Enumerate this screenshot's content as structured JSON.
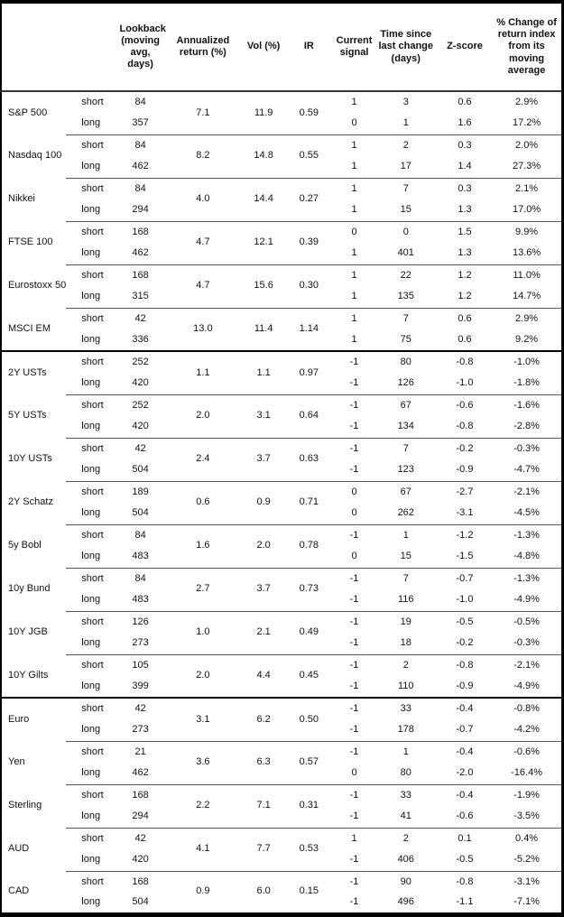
{
  "table": {
    "columns": {
      "lookback": "Lookback (moving avg, days)",
      "annualized": "Annualized return (%)",
      "vol": "Vol (%)",
      "ir": "IR",
      "signal": "Current signal",
      "time": "Time since last change (days)",
      "zscore": "Z-score",
      "pct_change": "% Change of return index from its moving average"
    },
    "row_labels": {
      "short": "short",
      "long": "long"
    },
    "sections": [
      {
        "assets": [
          {
            "name": "S&P 500",
            "annualized": "7.1",
            "vol": "11.9",
            "ir": "0.59",
            "short": {
              "lookback": "84",
              "signal": "1",
              "time": "3",
              "zscore": "0.6",
              "pct": "2.9%"
            },
            "long": {
              "lookback": "357",
              "signal": "0",
              "time": "1",
              "zscore": "1.6",
              "pct": "17.2%"
            }
          },
          {
            "name": "Nasdaq 100",
            "annualized": "8.2",
            "vol": "14.8",
            "ir": "0.55",
            "short": {
              "lookback": "84",
              "signal": "1",
              "time": "2",
              "zscore": "0.3",
              "pct": "2.0%"
            },
            "long": {
              "lookback": "462",
              "signal": "1",
              "time": "17",
              "zscore": "1.4",
              "pct": "27.3%"
            }
          },
          {
            "name": "Nikkei",
            "annualized": "4.0",
            "vol": "14.4",
            "ir": "0.27",
            "short": {
              "lookback": "84",
              "signal": "1",
              "time": "7",
              "zscore": "0.3",
              "pct": "2.1%"
            },
            "long": {
              "lookback": "294",
              "signal": "1",
              "time": "15",
              "zscore": "1.3",
              "pct": "17.0%"
            }
          },
          {
            "name": "FTSE 100",
            "annualized": "4.7",
            "vol": "12.1",
            "ir": "0.39",
            "short": {
              "lookback": "168",
              "signal": "0",
              "time": "0",
              "zscore": "1.5",
              "pct": "9.9%"
            },
            "long": {
              "lookback": "462",
              "signal": "1",
              "time": "401",
              "zscore": "1.3",
              "pct": "13.6%"
            }
          },
          {
            "name": "Eurostoxx 50",
            "annualized": "4.7",
            "vol": "15.6",
            "ir": "0.30",
            "short": {
              "lookback": "168",
              "signal": "1",
              "time": "22",
              "zscore": "1.2",
              "pct": "11.0%"
            },
            "long": {
              "lookback": "315",
              "signal": "1",
              "time": "135",
              "zscore": "1.2",
              "pct": "14.7%"
            }
          },
          {
            "name": "MSCI EM",
            "annualized": "13.0",
            "vol": "11.4",
            "ir": "1.14",
            "short": {
              "lookback": "42",
              "signal": "1",
              "time": "7",
              "zscore": "0.6",
              "pct": "2.9%"
            },
            "long": {
              "lookback": "336",
              "signal": "1",
              "time": "75",
              "zscore": "0.6",
              "pct": "9.2%"
            }
          }
        ]
      },
      {
        "assets": [
          {
            "name": "2Y USTs",
            "annualized": "1.1",
            "vol": "1.1",
            "ir": "0.97",
            "short": {
              "lookback": "252",
              "signal": "-1",
              "time": "80",
              "zscore": "-0.8",
              "pct": "-1.0%"
            },
            "long": {
              "lookback": "420",
              "signal": "-1",
              "time": "126",
              "zscore": "-1.0",
              "pct": "-1.8%"
            }
          },
          {
            "name": "5Y USTs",
            "annualized": "2.0",
            "vol": "3.1",
            "ir": "0.64",
            "short": {
              "lookback": "252",
              "signal": "-1",
              "time": "67",
              "zscore": "-0.6",
              "pct": "-1.6%"
            },
            "long": {
              "lookback": "420",
              "signal": "-1",
              "time": "134",
              "zscore": "-0.8",
              "pct": "-2.8%"
            }
          },
          {
            "name": "10Y USTs",
            "annualized": "2.4",
            "vol": "3.7",
            "ir": "0.63",
            "short": {
              "lookback": "42",
              "signal": "-1",
              "time": "7",
              "zscore": "-0.2",
              "pct": "-0.3%"
            },
            "long": {
              "lookback": "504",
              "signal": "-1",
              "time": "123",
              "zscore": "-0.9",
              "pct": "-4.7%"
            }
          },
          {
            "name": "2Y Schatz",
            "annualized": "0.6",
            "vol": "0.9",
            "ir": "0.71",
            "short": {
              "lookback": "189",
              "signal": "0",
              "time": "67",
              "zscore": "-2.7",
              "pct": "-2.1%"
            },
            "long": {
              "lookback": "504",
              "signal": "0",
              "time": "262",
              "zscore": "-3.1",
              "pct": "-4.5%"
            }
          },
          {
            "name": "5y Bobl",
            "annualized": "1.6",
            "vol": "2.0",
            "ir": "0.78",
            "short": {
              "lookback": "84",
              "signal": "-1",
              "time": "1",
              "zscore": "-1.2",
              "pct": "-1.3%"
            },
            "long": {
              "lookback": "483",
              "signal": "0",
              "time": "15",
              "zscore": "-1.5",
              "pct": "-4.8%"
            }
          },
          {
            "name": "10y Bund",
            "annualized": "2.7",
            "vol": "3.7",
            "ir": "0.73",
            "short": {
              "lookback": "84",
              "signal": "-1",
              "time": "7",
              "zscore": "-0.7",
              "pct": "-1.3%"
            },
            "long": {
              "lookback": "483",
              "signal": "-1",
              "time": "116",
              "zscore": "-1.0",
              "pct": "-4.9%"
            }
          },
          {
            "name": "10Y JGB",
            "annualized": "1.0",
            "vol": "2.1",
            "ir": "0.49",
            "short": {
              "lookback": "126",
              "signal": "-1",
              "time": "19",
              "zscore": "-0.5",
              "pct": "-0.5%"
            },
            "long": {
              "lookback": "273",
              "signal": "-1",
              "time": "18",
              "zscore": "-0.2",
              "pct": "-0.3%"
            }
          },
          {
            "name": "10Y Gilts",
            "annualized": "2.0",
            "vol": "4.4",
            "ir": "0.45",
            "short": {
              "lookback": "105",
              "signal": "-1",
              "time": "2",
              "zscore": "-0.8",
              "pct": "-2.1%"
            },
            "long": {
              "lookback": "399",
              "signal": "-1",
              "time": "110",
              "zscore": "-0.9",
              "pct": "-4.9%"
            }
          }
        ]
      },
      {
        "assets": [
          {
            "name": "Euro",
            "annualized": "3.1",
            "vol": "6.2",
            "ir": "0.50",
            "short": {
              "lookback": "42",
              "signal": "-1",
              "time": "33",
              "zscore": "-0.4",
              "pct": "-0.8%"
            },
            "long": {
              "lookback": "273",
              "signal": "-1",
              "time": "178",
              "zscore": "-0.7",
              "pct": "-4.2%"
            }
          },
          {
            "name": "Yen",
            "annualized": "3.6",
            "vol": "6.3",
            "ir": "0.57",
            "short": {
              "lookback": "21",
              "signal": "-1",
              "time": "1",
              "zscore": "-0.4",
              "pct": "-0.6%"
            },
            "long": {
              "lookback": "462",
              "signal": "0",
              "time": "80",
              "zscore": "-2.0",
              "pct": "-16.4%"
            }
          },
          {
            "name": "Sterling",
            "annualized": "2.2",
            "vol": "7.1",
            "ir": "0.31",
            "short": {
              "lookback": "168",
              "signal": "-1",
              "time": "33",
              "zscore": "-0.4",
              "pct": "-1.9%"
            },
            "long": {
              "lookback": "294",
              "signal": "-1",
              "time": "41",
              "zscore": "-0.6",
              "pct": "-3.5%"
            }
          },
          {
            "name": "AUD",
            "annualized": "4.1",
            "vol": "7.7",
            "ir": "0.53",
            "short": {
              "lookback": "42",
              "signal": "1",
              "time": "2",
              "zscore": "0.1",
              "pct": "0.4%"
            },
            "long": {
              "lookback": "420",
              "signal": "-1",
              "time": "406",
              "zscore": "-0.5",
              "pct": "-5.2%"
            }
          },
          {
            "name": "CAD",
            "annualized": "0.9",
            "vol": "6.0",
            "ir": "0.15",
            "short": {
              "lookback": "168",
              "signal": "-1",
              "time": "90",
              "zscore": "-0.8",
              "pct": "-3.1%"
            },
            "long": {
              "lookback": "504",
              "signal": "-1",
              "time": "496",
              "zscore": "-1.1",
              "pct": "-7.1%"
            }
          }
        ]
      }
    ]
  }
}
